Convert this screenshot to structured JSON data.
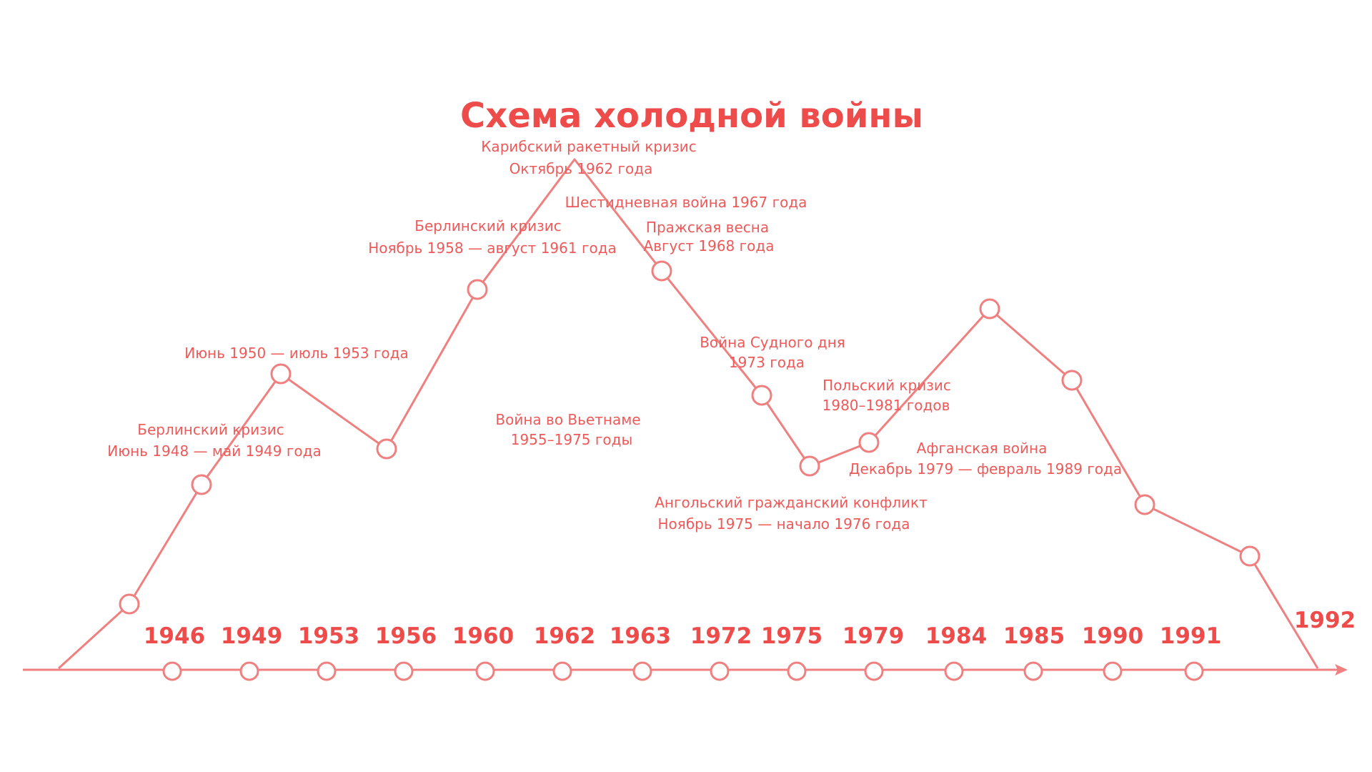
{
  "title": "Схема холодной войны",
  "accent_color": "#ee4b4b",
  "line_color": "#f08080",
  "timeline": {
    "years": [
      "1946",
      "1949",
      "1953",
      "1956",
      "1960",
      "1962",
      "1963",
      "1972",
      "1975",
      "1979",
      "1984",
      "1985",
      "1990",
      "1991"
    ],
    "end_year": "1992"
  },
  "events": [
    {
      "lines": [
        "Берлинский кризис",
        "Июнь 1948 — май 1949 года"
      ]
    },
    {
      "lines": [
        "Июнь 1950 — июль 1953 года"
      ]
    },
    {
      "lines": [
        "Война во Вьетнаме",
        "1955–1975 годы"
      ]
    },
    {
      "lines": [
        "Берлинский кризис",
        "Ноябрь 1958 — август 1961 года"
      ]
    },
    {
      "lines": [
        "Карибский ракетный кризис",
        "Октябрь 1962 года"
      ]
    },
    {
      "lines": [
        "Шестидневная война 1967 года"
      ]
    },
    {
      "lines": [
        "Пражская весна",
        "Август 1968 года"
      ]
    },
    {
      "lines": [
        "Война Судного дня",
        "1973 года"
      ]
    },
    {
      "lines": [
        "Польский кризис",
        "1980–1981 годов"
      ]
    },
    {
      "lines": [
        "Афганская война",
        "Декабрь 1979 — февраль 1989 года"
      ]
    },
    {
      "lines": [
        "Ангольский гражданский конфликт",
        "Ноябрь 1975 — начало 1976 года"
      ]
    }
  ]
}
